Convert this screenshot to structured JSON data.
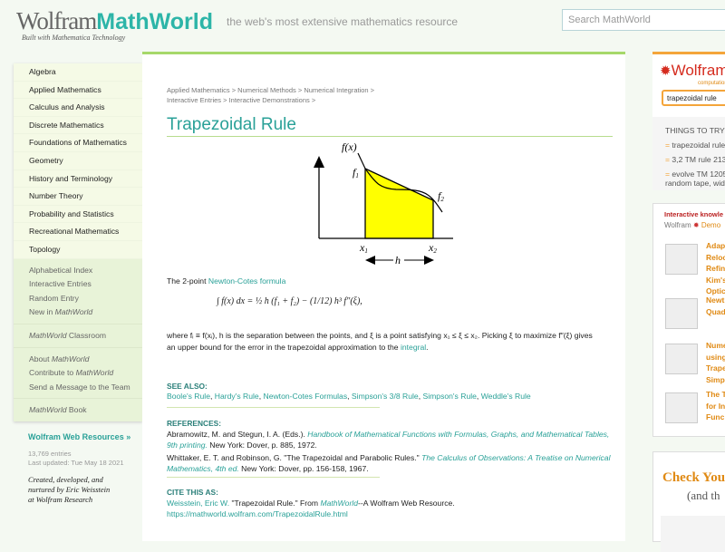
{
  "header": {
    "logo_wolfram": "Wolfram",
    "logo_mathworld": "MathWorld",
    "logo_sub": "Built with Mathematica Technology",
    "tagline": "the web's most extensive mathematics resource",
    "search_placeholder": "Search MathWorld"
  },
  "sidebar": {
    "categories": [
      "Algebra",
      "Applied Mathematics",
      "Calculus and Analysis",
      "Discrete Mathematics",
      "Foundations of Mathematics",
      "Geometry",
      "History and Terminology",
      "Number Theory",
      "Probability and Statistics",
      "Recreational Mathematics",
      "Topology"
    ],
    "links1": [
      "Alphabetical Index",
      "Interactive Entries",
      "Random Entry",
      "New in MathWorld"
    ],
    "classroom": "MathWorld Classroom",
    "links2": [
      "About MathWorld",
      "Contribute to MathWorld",
      "Send a Message to the Team"
    ],
    "book": "MathWorld Book",
    "web_resources": "Wolfram Web Resources »",
    "entries": "13,769 entries",
    "updated": "Last updated: Tue May 18 2021",
    "created": [
      "Created, developed, and",
      "nurtured by Eric Weisstein",
      "at Wolfram Research"
    ]
  },
  "main": {
    "breadcrumb1": "Applied Mathematics > Numerical Methods > Numerical Integration >",
    "breadcrumb2": "Interactive Entries > Interactive Demonstrations >",
    "title": "Trapezoidal Rule",
    "figure": {
      "fx": "f(x)",
      "f1": "f",
      "f1_sub": "1",
      "f2": "f",
      "f2_sub": "2",
      "x1": "x",
      "x1_sub": "1",
      "x2": "x",
      "x2_sub": "2",
      "h": "h"
    },
    "intro": "The 2-point ",
    "intro_link": "Newton-Cotes formula",
    "formula": "∫ f(x) dx = ½ h (f₁ + f₂) − (1/12) h³ f″(ξ),",
    "where": "where fᵢ ≡ f(xᵢ), h is the separation between the points, and ξ is a point satisfying x₁ ≤ ξ ≤ x₂. Picking ξ to maximize f″(ξ) gives an upper bound for the error in the trapezoidal approximation to the ",
    "where_link": "integral",
    "where_end": ".",
    "see_also_label": "SEE ALSO:",
    "see_also": [
      "Boole's Rule",
      "Hardy's Rule",
      "Newton-Cotes Formulas",
      "Simpson's 3/8 Rule",
      "Simpson's Rule",
      "Weddle's Rule"
    ],
    "references_label": "REFERENCES:",
    "ref1_a": "Abramowitz, M. and Stegun, I. A. (Eds.). ",
    "ref1_link": "Handbook of Mathematical Functions with Formulas, Graphs, and Mathematical Tables, 9th printing.",
    "ref1_b": " New York: Dover, p. 885, 1972.",
    "ref2_a": "Whittaker, E. T. and Robinson, G. \"The Trapezoidal and Parabolic Rules.\" ",
    "ref2_link": "The Calculus of Observations: A Treatise on Numerical Mathematics, 4th ed.",
    "ref2_b": " New York: Dover, pp. 156-158, 1967.",
    "cite_label": "CITE THIS AS:",
    "cite_author": "Weisstein, Eric W.",
    "cite_mid": " \"Trapezoidal Rule.\" From ",
    "cite_mw": "MathWorld",
    "cite_end": "--A Wolfram Web Resource.",
    "cite_url": "https://mathworld.wolfram.com/TrapezoidalRule.html"
  },
  "right": {
    "wa_logo": "Wolfram",
    "wa_sub": "computational",
    "wa_input": "trapezoidal rule",
    "things": "THINGS TO TRY",
    "tries": [
      "trapezoidal rule",
      "3,2 TM rule 213",
      "evolve TM 1205"
    ],
    "try3_cont": "random tape, wid",
    "interactive": "Interactive knowle",
    "demo_wolfram": "Wolfram",
    "demo": "Demo",
    "demos": [
      [
        "Adap",
        "Reloc",
        "Refin",
        "Kim's",
        "Optic"
      ],
      [
        "Newt",
        "Quad"
      ],
      [
        "Nume",
        "using",
        "Trape",
        "Simp"
      ],
      [
        "The T",
        "for In",
        "Func"
      ]
    ],
    "check": "Check You",
    "check_sub": "(and th"
  },
  "colors": {
    "accent": "#2aa198",
    "orange": "#e08a14",
    "green": "#a6d86a",
    "yellow": "#ffff00"
  }
}
